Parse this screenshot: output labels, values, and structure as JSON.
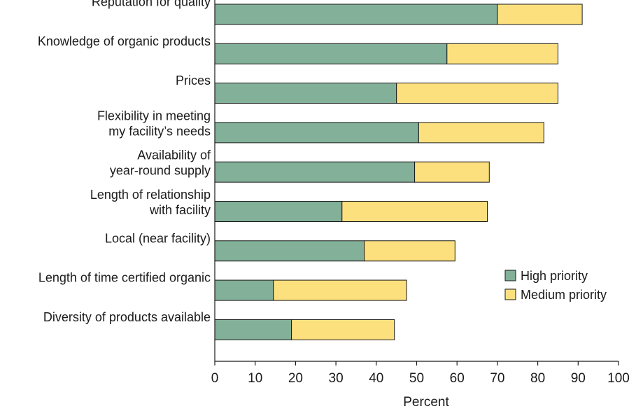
{
  "chart_data": {
    "type": "bar",
    "orientation": "horizontal",
    "stacked": true,
    "title": "",
    "xlabel": "Percent",
    "ylabel": "",
    "xlim": [
      0,
      100
    ],
    "xticks": [
      0,
      10,
      20,
      30,
      40,
      50,
      60,
      70,
      80,
      90,
      100
    ],
    "grid": false,
    "legend_position": "right",
    "categories": [
      [
        "Reputation for quality"
      ],
      [
        "Knowledge of organic products"
      ],
      [
        "Prices"
      ],
      [
        "Flexibility in meeting",
        "my facility’s needs"
      ],
      [
        "Availability of",
        "year-round supply"
      ],
      [
        "Length of relationship",
        "with facility"
      ],
      [
        "Local (near facility)"
      ],
      [
        "Length of time certified organic"
      ],
      [
        "Diversity of products available"
      ]
    ],
    "series": [
      {
        "name": "High priority",
        "color": "#82b098",
        "values": [
          70,
          57.5,
          45,
          50.5,
          49.5,
          31.5,
          37,
          14.5,
          19
        ]
      },
      {
        "name": "Medium priority",
        "color": "#fde07e",
        "values": [
          21,
          27.5,
          40,
          31,
          18.5,
          36,
          22.5,
          33,
          25.5
        ]
      }
    ]
  }
}
